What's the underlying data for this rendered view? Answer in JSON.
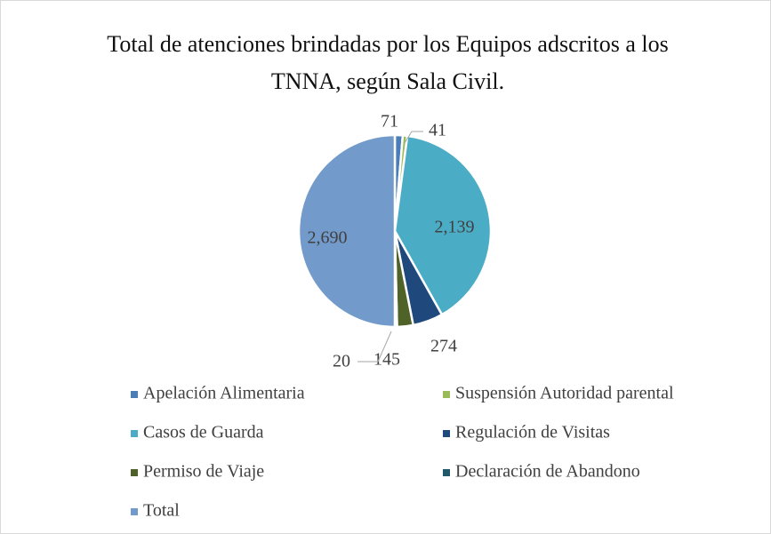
{
  "chart_data": {
    "type": "pie",
    "title": "Total de atenciones brindadas por los Equipos adscritos a los TNNA, según Sala Civil.",
    "categories": [
      "Apelación Alimentaria",
      "Suspensión Autoridad parental",
      "Casos de Guarda",
      "Regulación de Visitas",
      "Permiso de Viaje",
      "Declaración de Abandono",
      "Total"
    ],
    "values": [
      71,
      41,
      2139,
      274,
      145,
      20,
      2690
    ],
    "value_labels": [
      "71",
      "41",
      "2,139",
      "274",
      "145",
      "20",
      "2,690"
    ],
    "colors": [
      "#4a7ebb",
      "#9bbb59",
      "#4bacc6",
      "#1f497d",
      "#4f6228",
      "#215968",
      "#729aca"
    ],
    "legend": "bottom"
  }
}
